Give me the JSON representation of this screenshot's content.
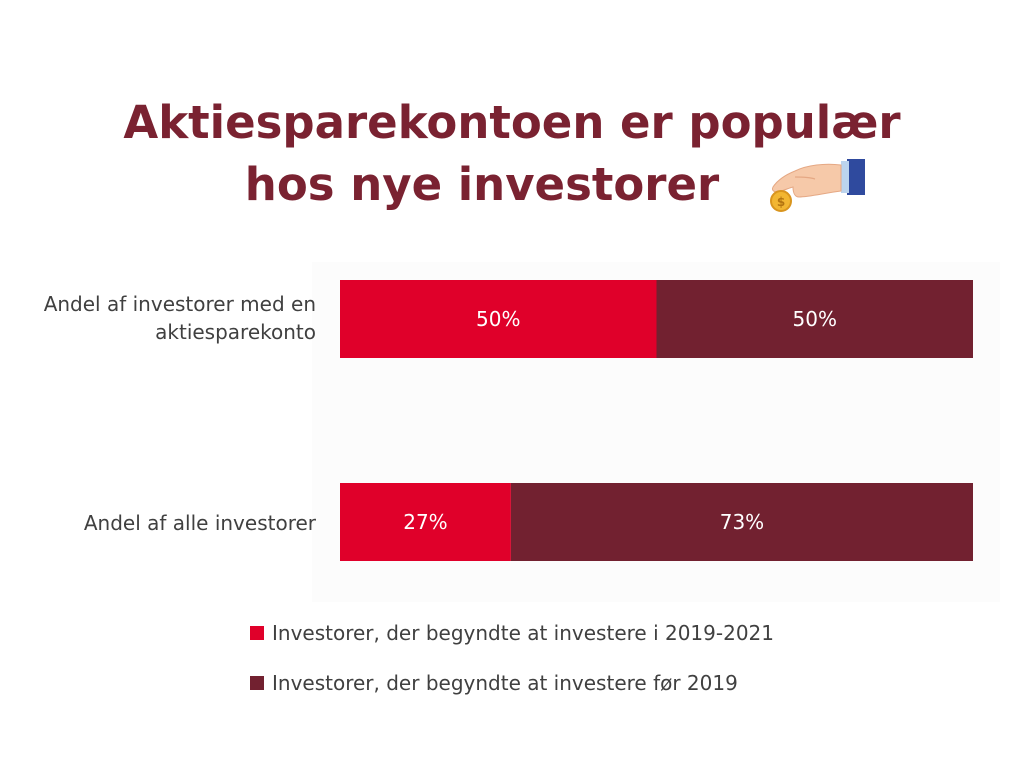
{
  "title": {
    "line1": "Aktiesparekontoen er populær",
    "line2": "hos nye investorer"
  },
  "icons": {
    "decoration": "hand-holding-coin-icon"
  },
  "colors": {
    "new_investors": "#e0002a",
    "old_investors": "#722130",
    "title": "#7a2231",
    "text": "#404040"
  },
  "chart_data": {
    "type": "bar",
    "orientation": "horizontal",
    "stacked": true,
    "percent_stacked": true,
    "categories": [
      "Andel af investorer med en aktiesparekonto",
      "Andel af alle investorer"
    ],
    "series": [
      {
        "name": "Investorer, der begyndte at investere i 2019-2021",
        "values": [
          50,
          27
        ],
        "labels": [
          "50%",
          "27%"
        ]
      },
      {
        "name": "Investorer, der begyndte at investere før 2019",
        "values": [
          50,
          73
        ],
        "labels": [
          "50%",
          "73%"
        ]
      }
    ],
    "xlim": [
      0,
      100
    ],
    "grid": false,
    "legend": "bottom"
  },
  "category_labels": {
    "cat1": "Andel af investorer med en aktiesparekonto",
    "cat2": "Andel af alle investorer"
  }
}
